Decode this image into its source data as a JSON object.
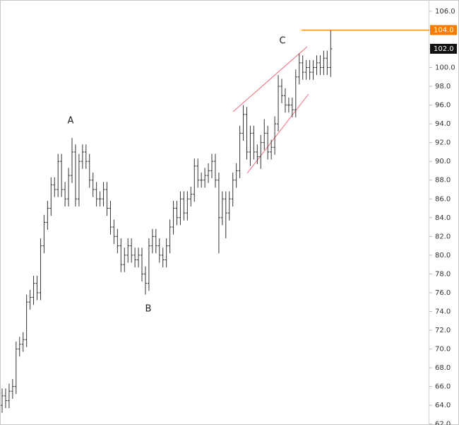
{
  "chart_data": {
    "type": "ohlc",
    "color": "#333333",
    "ylim": [
      61.9,
      107.2
    ],
    "yticks": [
      {
        "value": 62,
        "label": "62.0"
      },
      {
        "value": 64,
        "label": "64.0"
      },
      {
        "value": 66,
        "label": "66.0"
      },
      {
        "value": 68,
        "label": "68.0"
      },
      {
        "value": 70,
        "label": "70.0"
      },
      {
        "value": 72,
        "label": "72.0"
      },
      {
        "value": 74,
        "label": "74.0"
      },
      {
        "value": 76,
        "label": "76.0"
      },
      {
        "value": 78,
        "label": "78.0"
      },
      {
        "value": 80,
        "label": "80.0"
      },
      {
        "value": 82,
        "label": "82.0"
      },
      {
        "value": 84,
        "label": "84.0"
      },
      {
        "value": 86,
        "label": "86.0"
      },
      {
        "value": 88,
        "label": "88.0"
      },
      {
        "value": 90,
        "label": "90.0"
      },
      {
        "value": 92,
        "label": "92.0"
      },
      {
        "value": 94,
        "label": "94.0"
      },
      {
        "value": 96,
        "label": "96.0"
      },
      {
        "value": 98,
        "label": "98.0"
      },
      {
        "value": 100,
        "label": "100.0"
      },
      {
        "value": 102,
        "label": "102.0"
      },
      {
        "value": 104,
        "label": "104.0"
      },
      {
        "value": 106,
        "label": "106.0"
      }
    ],
    "open": [
      64,
      65,
      64.5,
      65.5,
      66,
      70,
      70.5,
      71,
      75,
      75.5,
      77,
      76,
      81,
      83.5,
      85,
      87.5,
      87,
      90,
      87,
      86,
      88.5,
      91,
      86,
      90,
      91,
      90,
      88,
      87,
      86,
      86,
      87,
      85,
      83,
      82,
      81,
      79,
      80,
      81,
      80,
      79.5,
      80,
      78,
      77,
      81,
      82,
      81,
      80,
      79.5,
      81,
      83,
      85,
      84,
      86,
      84.5,
      86,
      86.5,
      89.5,
      88,
      88,
      88.5,
      89,
      90,
      88,
      84,
      86,
      84.5,
      86,
      88,
      89,
      93,
      95,
      91,
      93,
      91,
      90.5,
      92,
      93,
      91,
      91.5,
      94,
      98,
      97,
      96,
      96,
      95.5,
      99,
      100.5,
      99.5,
      100,
      99.5,
      100,
      100.5,
      100,
      101,
      100
    ],
    "high": [
      65.8,
      65.8,
      66.3,
      66.8,
      70.8,
      71.3,
      71.8,
      75.8,
      76.3,
      77.8,
      77.8,
      81.8,
      84.3,
      85.8,
      88.3,
      88.3,
      90.8,
      90.8,
      87.8,
      89.3,
      92.5,
      91.8,
      90.8,
      91.8,
      91.8,
      90.8,
      88.8,
      87.8,
      86.8,
      87.8,
      87.8,
      85.8,
      83.8,
      82.8,
      81.8,
      80.8,
      81.8,
      81.8,
      80.8,
      80.8,
      80.8,
      78.8,
      81.8,
      82.8,
      82.8,
      81.8,
      80.8,
      81.8,
      83.8,
      85.8,
      85.8,
      86.8,
      86.8,
      86.8,
      87.3,
      90.3,
      90.3,
      88.8,
      89.3,
      89.8,
      90.8,
      90.8,
      88.8,
      86.8,
      86.8,
      86.8,
      88.8,
      89.8,
      93.8,
      96,
      95.8,
      93.8,
      93.8,
      91.8,
      92.8,
      94.5,
      93.8,
      92.3,
      94.8,
      99.2,
      98.8,
      97.8,
      96.8,
      96.8,
      99.8,
      101.5,
      101.3,
      100.8,
      100.8,
      100.8,
      101.3,
      101.3,
      101.8,
      101.8,
      104
    ],
    "low": [
      63.2,
      63.7,
      63.7,
      64.7,
      65.2,
      69.2,
      69.7,
      70.2,
      74.2,
      74.7,
      75.2,
      75.2,
      80.2,
      82.7,
      84.2,
      86.2,
      86.2,
      86.2,
      85.2,
      85.2,
      87.7,
      85.2,
      85.2,
      89.2,
      89.2,
      87.2,
      86.2,
      85.2,
      85.2,
      85.2,
      84.2,
      82.2,
      81.2,
      80.2,
      78.2,
      78.2,
      79.2,
      79.2,
      78.7,
      78.7,
      77.2,
      75.8,
      76.2,
      80.2,
      80.2,
      79.2,
      78.7,
      78.7,
      80.2,
      82.2,
      83.2,
      83.2,
      83.7,
      83.7,
      85.2,
      85.7,
      87.2,
      87.2,
      87.2,
      87.7,
      88.2,
      87.2,
      80.2,
      83.2,
      81.8,
      83.7,
      85.2,
      87.2,
      88.2,
      92.2,
      90.2,
      89.5,
      90.2,
      89.7,
      89.2,
      91.2,
      90.2,
      90.2,
      90.7,
      93.2,
      96.2,
      95.2,
      95.2,
      94.7,
      94.7,
      98.2,
      98.7,
      98.7,
      98.7,
      98.7,
      99.2,
      99.2,
      99.2,
      99.2,
      99
    ],
    "close": [
      65,
      64.5,
      65.5,
      66,
      70,
      70.5,
      71,
      75,
      75.5,
      77,
      76,
      81,
      83.5,
      85,
      87.5,
      87,
      90,
      87,
      86,
      88.5,
      91,
      86,
      90,
      91,
      90,
      88,
      87,
      86,
      86,
      87,
      85,
      83,
      82,
      81,
      79,
      80,
      81,
      80,
      79.5,
      80,
      78,
      77,
      81,
      82,
      81,
      80,
      79.5,
      81,
      83,
      85,
      84,
      86,
      84.5,
      86,
      86.5,
      89.5,
      88,
      88,
      88.5,
      89,
      90,
      88,
      84,
      86,
      84.5,
      86,
      88,
      89,
      93,
      95,
      91,
      93,
      91,
      90.5,
      92,
      93,
      91,
      91.5,
      94,
      98,
      97,
      96,
      96,
      95.5,
      99,
      100.5,
      99.5,
      100,
      99.5,
      100,
      100.5,
      100,
      101,
      100,
      102
    ],
    "annotations": [
      "A",
      "B",
      "C"
    ],
    "level": {
      "value": 104,
      "label": "104.0",
      "color": "#f57c00"
    },
    "last_price": {
      "value": 102,
      "label": "102.0",
      "color": "#111111"
    }
  }
}
